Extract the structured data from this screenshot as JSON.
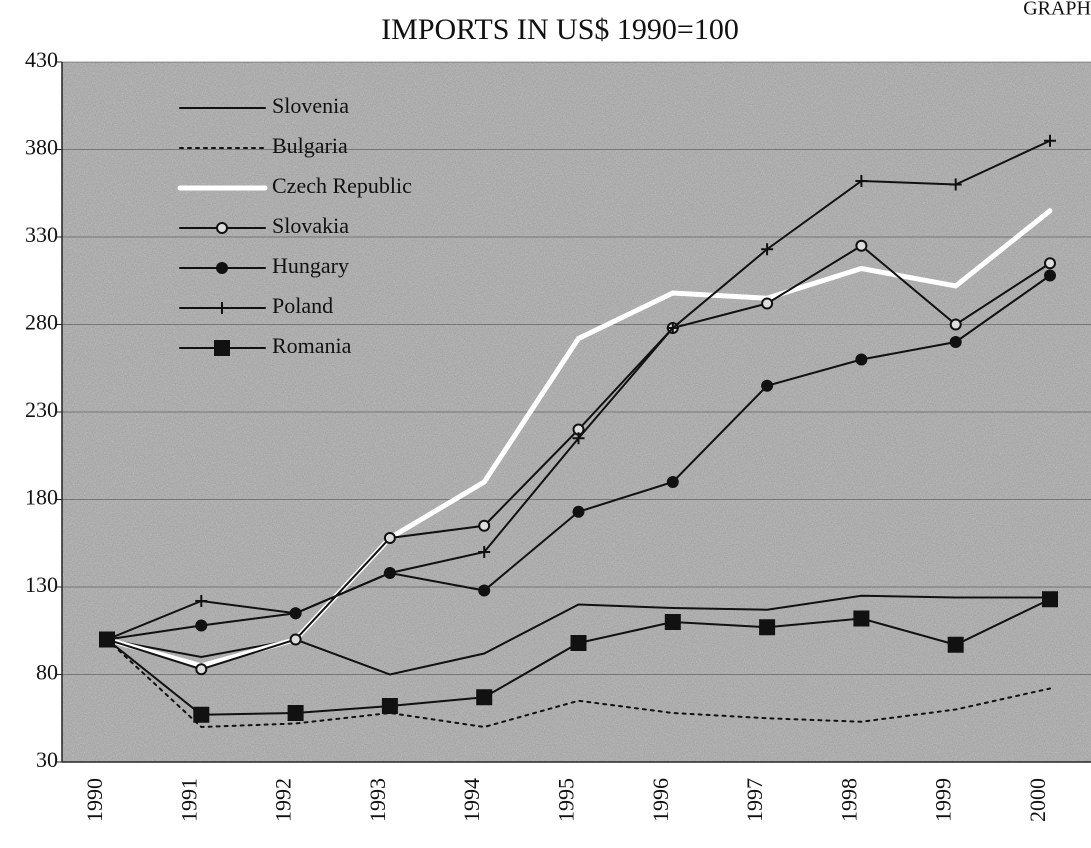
{
  "chart_data": {
    "type": "line",
    "title": "IMPORTS IN US$ 1990=100",
    "corner_label": "GRAPH",
    "categories": [
      "1990",
      "1991",
      "1992",
      "1993",
      "1994",
      "1995",
      "1996",
      "1997",
      "1998",
      "1999",
      "2000"
    ],
    "ylim": [
      30,
      430
    ],
    "yticks": [
      30,
      80,
      130,
      180,
      230,
      280,
      330,
      380,
      430
    ],
    "grid": true,
    "legend": "upper left",
    "series": [
      {
        "name": "Slovenia",
        "color": "#111111",
        "marker": "none",
        "dash": "solid",
        "values": [
          100,
          90,
          100,
          80,
          92,
          120,
          118,
          117,
          125,
          124,
          124
        ]
      },
      {
        "name": "Bulgaria",
        "color": "#111111",
        "marker": "none",
        "dash": "dotted",
        "values": [
          100,
          50,
          52,
          58,
          50,
          65,
          58,
          55,
          53,
          60,
          72
        ]
      },
      {
        "name": "Czech Republic",
        "color": "#ffffff",
        "marker": "none",
        "dash": "solid",
        "values": [
          100,
          85,
          100,
          158,
          190,
          272,
          298,
          295,
          312,
          302,
          345
        ]
      },
      {
        "name": "Slovakia",
        "color": "#111111",
        "marker": "open-circle",
        "dash": "solid",
        "values": [
          100,
          83,
          100,
          158,
          165,
          220,
          278,
          292,
          325,
          280,
          315
        ]
      },
      {
        "name": "Hungary",
        "color": "#111111",
        "marker": "circle",
        "dash": "solid",
        "values": [
          100,
          108,
          115,
          138,
          128,
          173,
          190,
          245,
          260,
          270,
          308
        ]
      },
      {
        "name": "Poland",
        "color": "#111111",
        "marker": "plus",
        "dash": "solid",
        "values": [
          100,
          122,
          115,
          138,
          150,
          215,
          278,
          323,
          362,
          360,
          385
        ]
      },
      {
        "name": "Romania",
        "color": "#111111",
        "marker": "square",
        "dash": "solid",
        "values": [
          100,
          57,
          58,
          62,
          67,
          98,
          110,
          107,
          112,
          97,
          123
        ]
      }
    ]
  }
}
